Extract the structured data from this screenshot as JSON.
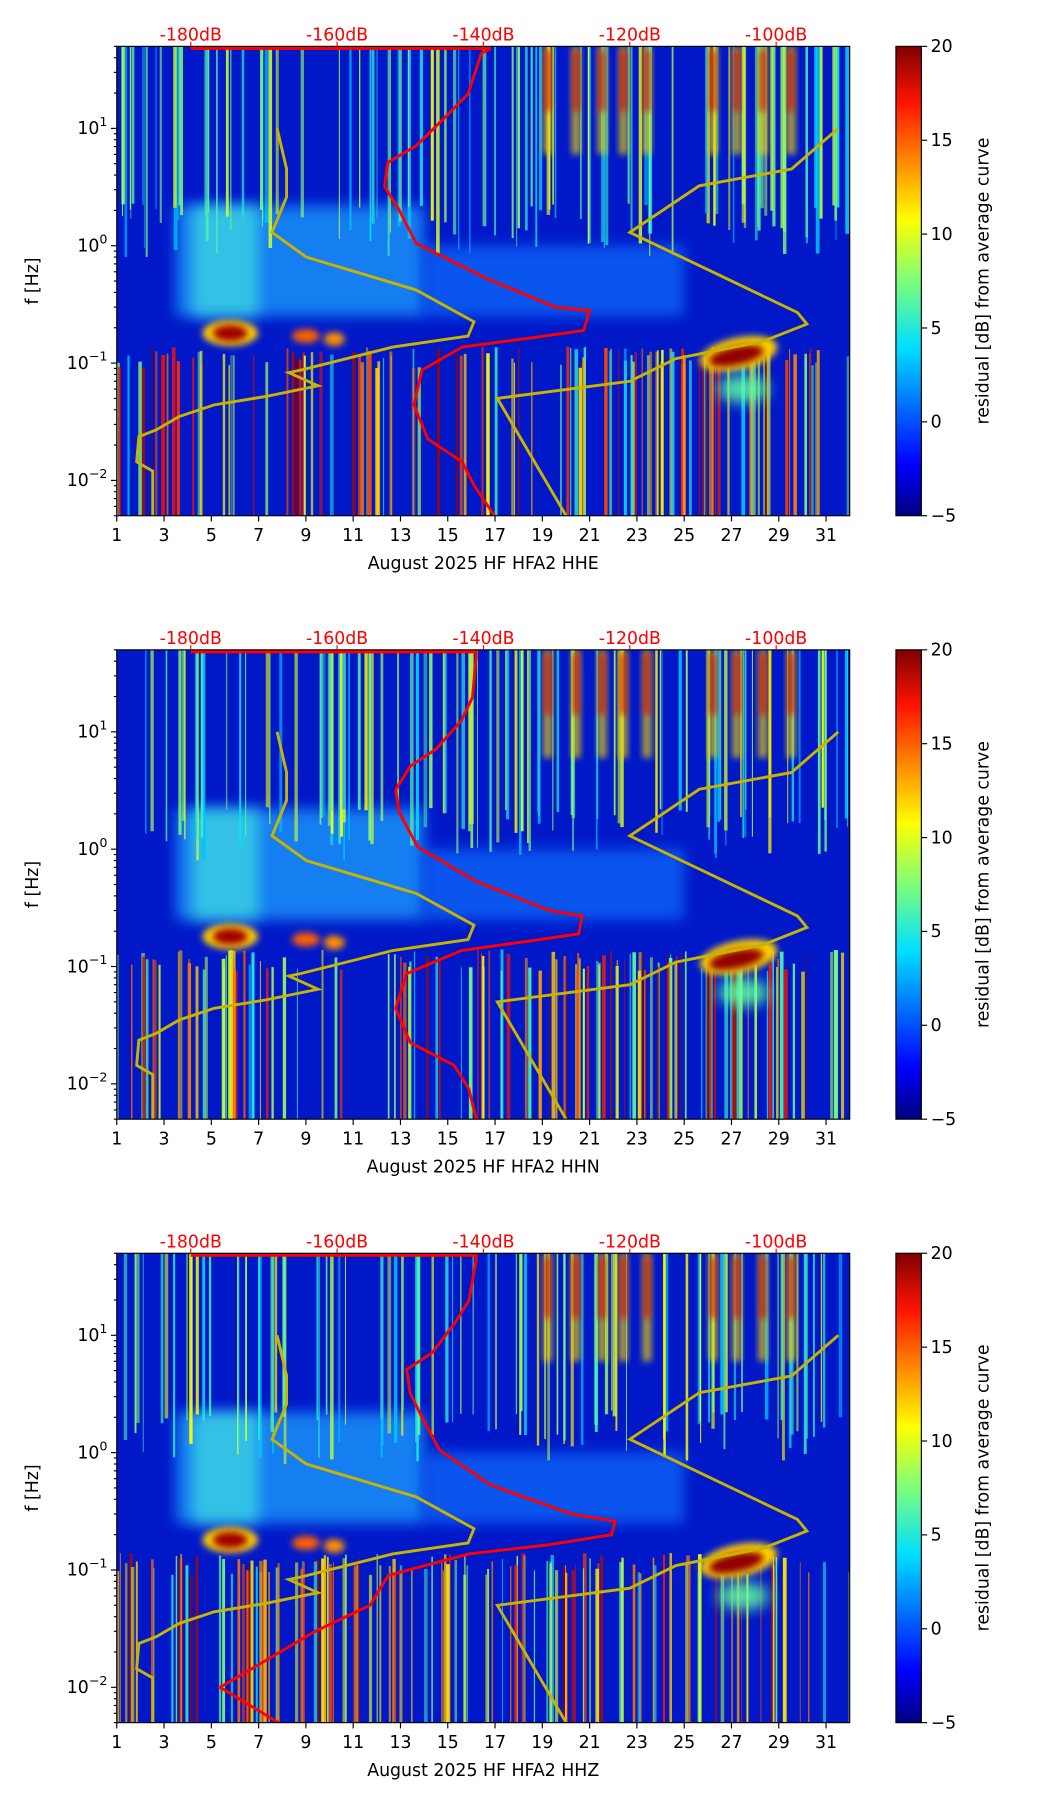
{
  "chart_data": [
    {
      "type": "heatmap",
      "xlabel": "August 2025 HF HFA2  HHE",
      "ylabel": "f [Hz]",
      "colorbar_label": "residual [dB] from average curve",
      "xlim": [
        1,
        32
      ],
      "ylim": [
        0.005,
        50
      ],
      "yscale": "log",
      "clim": [
        -5,
        20
      ],
      "colormap": "jet",
      "x_ticks": [
        "1",
        "3",
        "5",
        "7",
        "9",
        "11",
        "13",
        "15",
        "17",
        "19",
        "21",
        "23",
        "25",
        "27",
        "29",
        "31"
      ],
      "y_ticks": [
        {
          "base": "10",
          "exp": "1",
          "value": 10
        },
        {
          "base": "10",
          "exp": "0",
          "value": 1
        },
        {
          "base": "10",
          "exp": "−1",
          "value": 0.1
        },
        {
          "base": "10",
          "exp": "−2",
          "value": 0.01
        }
      ],
      "colorbar_ticks": [
        "20",
        "15",
        "10",
        "5",
        "0",
        "−5"
      ],
      "top_axis_ticks": [
        "-180dB",
        "-160dB",
        "-140dB",
        "-120dB",
        "-100dB"
      ],
      "top_axis_values": [
        -180,
        -160,
        -140,
        -120,
        -100
      ],
      "mean_psd_curve": {
        "color": "#ff0000",
        "db": [
          -180,
          -139,
          -140.3,
          -142.1,
          -145.2,
          -149.2,
          -153.1,
          -153.5,
          -151.6,
          -149.2,
          -139.7,
          -130.2,
          -125.5,
          -126.3,
          -133.4,
          -142.9,
          -148.4,
          -149.5,
          -147.6,
          -142.9,
          -141.3,
          -138.5
        ],
        "f": [
          48,
          48,
          43.4,
          19.7,
          12.5,
          7.1,
          5.1,
          3.2,
          2.06,
          1.05,
          0.53,
          0.3,
          0.28,
          0.19,
          0.164,
          0.137,
          0.087,
          0.044,
          0.0225,
          0.0144,
          0.0091,
          0.005
        ]
      },
      "nlnm_curve": {
        "color": "#c8b400",
        "db": [
          -168.2,
          -166.9,
          -166.9,
          -168.9,
          -164.2,
          -149.2,
          -141.3,
          -142.1,
          -152.4,
          -165.0,
          -166.6,
          -162.6,
          -169.7,
          -176.8,
          -181.6,
          -184.7,
          -187.1,
          -187.4,
          -185.2,
          -185.2
        ],
        "f": [
          10,
          4.5,
          2.6,
          1.3,
          0.8,
          0.42,
          0.225,
          0.17,
          0.137,
          0.087,
          0.083,
          0.064,
          0.052,
          0.044,
          0.035,
          0.027,
          0.0236,
          0.0144,
          0.012,
          0.005
        ]
      },
      "nhnm_curve": {
        "color": "#c8b400",
        "db": [
          -91.5,
          -97.9,
          -110.5,
          -120,
          -97.1,
          -95.8,
          -101.8,
          -113.7,
          -120,
          -138.1,
          -128.7
        ],
        "f": [
          10,
          4.5,
          3.24,
          1.3,
          0.27,
          0.215,
          0.153,
          0.109,
          0.07,
          0.05,
          0.005
        ]
      }
    },
    {
      "type": "heatmap",
      "xlabel": "August 2025 HF HFA2  HHN",
      "ylabel": "f [Hz]",
      "colorbar_label": "residual [dB] from average curve",
      "xlim": [
        1,
        32
      ],
      "ylim": [
        0.005,
        50
      ],
      "yscale": "log",
      "clim": [
        -5,
        20
      ],
      "colormap": "jet",
      "x_ticks": [
        "1",
        "3",
        "5",
        "7",
        "9",
        "11",
        "13",
        "15",
        "17",
        "19",
        "21",
        "23",
        "25",
        "27",
        "29",
        "31"
      ],
      "y_ticks": [
        {
          "base": "10",
          "exp": "1",
          "value": 10
        },
        {
          "base": "10",
          "exp": "0",
          "value": 1
        },
        {
          "base": "10",
          "exp": "−1",
          "value": 0.1
        },
        {
          "base": "10",
          "exp": "−2",
          "value": 0.01
        }
      ],
      "colorbar_ticks": [
        "20",
        "15",
        "10",
        "5",
        "0",
        "−5"
      ],
      "top_axis_ticks": [
        "-180dB",
        "-160dB",
        "-140dB",
        "-120dB",
        "-100dB"
      ],
      "top_axis_values": [
        -180,
        -160,
        -140,
        -120,
        -100
      ],
      "mean_psd_curve": {
        "color": "#ff0000",
        "db": [
          -180,
          -141,
          -141,
          -141.5,
          -143,
          -146.5,
          -150,
          -152,
          -151.5,
          -149,
          -141,
          -131,
          -126.5,
          -127,
          -134,
          -143,
          -150.5,
          -152,
          -150,
          -144,
          -142,
          -141
        ],
        "f": [
          48,
          48,
          43.4,
          19.7,
          12.5,
          7.1,
          5.1,
          3.2,
          2.06,
          1.05,
          0.53,
          0.3,
          0.27,
          0.19,
          0.164,
          0.137,
          0.087,
          0.044,
          0.0225,
          0.0144,
          0.0091,
          0.005
        ]
      },
      "nlnm_curve": {
        "color": "#c8b400",
        "db": [
          -168.2,
          -166.9,
          -166.9,
          -168.9,
          -164.2,
          -149.2,
          -141.3,
          -142.1,
          -152.4,
          -165.0,
          -166.6,
          -162.6,
          -169.7,
          -176.8,
          -181.6,
          -184.7,
          -187.1,
          -187.4,
          -185.2,
          -185.2
        ],
        "f": [
          10,
          4.5,
          2.6,
          1.3,
          0.8,
          0.42,
          0.225,
          0.17,
          0.137,
          0.087,
          0.083,
          0.064,
          0.052,
          0.044,
          0.035,
          0.027,
          0.0236,
          0.0144,
          0.012,
          0.005
        ]
      },
      "nhnm_curve": {
        "color": "#c8b400",
        "db": [
          -91.5,
          -97.9,
          -110.5,
          -120,
          -97.1,
          -95.8,
          -101.8,
          -113.7,
          -120,
          -138.1,
          -128.7
        ],
        "f": [
          10,
          4.5,
          3.24,
          1.3,
          0.27,
          0.215,
          0.153,
          0.109,
          0.07,
          0.05,
          0.005
        ]
      }
    },
    {
      "type": "heatmap",
      "xlabel": "August 2025 HF HFA2  HHZ",
      "ylabel": "f [Hz]",
      "colorbar_label": "residual [dB] from average curve",
      "xlim": [
        1,
        32
      ],
      "ylim": [
        0.005,
        50
      ],
      "yscale": "log",
      "clim": [
        -5,
        20
      ],
      "colormap": "jet",
      "x_ticks": [
        "1",
        "3",
        "5",
        "7",
        "9",
        "11",
        "13",
        "15",
        "17",
        "19",
        "21",
        "23",
        "25",
        "27",
        "29",
        "31"
      ],
      "y_ticks": [
        {
          "base": "10",
          "exp": "1",
          "value": 10
        },
        {
          "base": "10",
          "exp": "0",
          "value": 1
        },
        {
          "base": "10",
          "exp": "−1",
          "value": 0.1
        },
        {
          "base": "10",
          "exp": "−2",
          "value": 0.01
        }
      ],
      "colorbar_ticks": [
        "20",
        "15",
        "10",
        "5",
        "0",
        "−5"
      ],
      "top_axis_ticks": [
        "-180dB",
        "-160dB",
        "-140dB",
        "-120dB",
        "-100dB"
      ],
      "top_axis_values": [
        -180,
        -160,
        -140,
        -120,
        -100
      ],
      "mean_psd_curve": {
        "color": "#ff0000",
        "db": [
          -180,
          -141,
          -141,
          -142,
          -144,
          -147,
          -150.5,
          -150,
          -148.5,
          -146,
          -139,
          -128,
          -122,
          -122.5,
          -131,
          -142,
          -153,
          -155.5,
          -163,
          -169,
          -176,
          -168
        ],
        "f": [
          48,
          48,
          43.4,
          19.7,
          12.5,
          7.1,
          5.1,
          3.2,
          2.06,
          1.05,
          0.53,
          0.3,
          0.26,
          0.2,
          0.164,
          0.137,
          0.09,
          0.05,
          0.03,
          0.018,
          0.01,
          0.005
        ]
      },
      "nlnm_curve": {
        "color": "#c8b400",
        "db": [
          -168.2,
          -166.9,
          -166.9,
          -168.9,
          -164.2,
          -149.2,
          -141.3,
          -142.1,
          -152.4,
          -165.0,
          -166.6,
          -162.6,
          -169.7,
          -176.8,
          -181.6,
          -184.7,
          -187.1,
          -187.4,
          -185.2,
          -185.2
        ],
        "f": [
          10,
          4.5,
          2.6,
          1.3,
          0.8,
          0.42,
          0.225,
          0.17,
          0.137,
          0.087,
          0.083,
          0.064,
          0.052,
          0.044,
          0.035,
          0.027,
          0.0236,
          0.0144,
          0.012,
          0.005
        ]
      },
      "nhnm_curve": {
        "color": "#c8b400",
        "db": [
          -91.5,
          -97.9,
          -110.5,
          -120,
          -97.1,
          -95.8,
          -101.8,
          -113.7,
          -120,
          -138.1,
          -128.7
        ],
        "f": [
          10,
          4.5,
          3.24,
          1.3,
          0.27,
          0.215,
          0.153,
          0.109,
          0.07,
          0.05,
          0.005
        ]
      }
    }
  ]
}
